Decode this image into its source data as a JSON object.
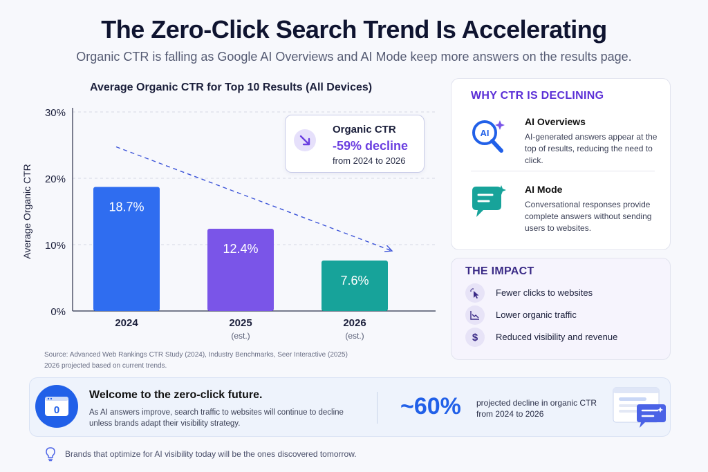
{
  "header": {
    "title": "The Zero-Click Search Trend Is Accelerating",
    "subtitle": "Organic CTR is falling as Google AI Overviews and AI Mode keep more answers on the results page."
  },
  "chart_data": {
    "type": "bar",
    "title": "Average Organic CTR for Top 10 Results (All Devices)",
    "ylabel": "Average Organic CTR",
    "xlabel": "",
    "ylim": [
      0,
      30
    ],
    "yticks": [
      "0%",
      "10%",
      "20%",
      "30%"
    ],
    "ytick_values": [
      0,
      10,
      20,
      30
    ],
    "grid": true,
    "categories": [
      "2024",
      "2025",
      "2026"
    ],
    "category_sublabels": [
      "",
      "(est.)",
      "(est.)"
    ],
    "values": [
      18.7,
      12.4,
      7.6
    ],
    "value_labels": [
      "18.7%",
      "12.4%",
      "7.6%"
    ],
    "bar_colors": [
      "#2f6df0",
      "#7a55e8",
      "#17a39a"
    ],
    "trend_line": true
  },
  "callout": {
    "label": "Organic CTR",
    "value": "-59% decline",
    "range": "from 2024 to 2026",
    "icon": "trend-down-icon"
  },
  "source": {
    "line1": "Source: Advanced Web Rankings CTR Study (2024), Industry Benchmarks, Seer Interactive (2025)",
    "line2": "2026 projected based on current trends."
  },
  "why": {
    "heading": "WHY CTR IS DECLINING",
    "items": [
      {
        "title": "AI Overviews",
        "desc": "AI-generated answers appear at the top of results, reducing the need to click.",
        "icon": "ai-search-icon",
        "icon_text": "AI"
      },
      {
        "title": "AI Mode",
        "desc": "Conversational responses provide complete answers without sending users to websites.",
        "icon": "chat-bubble-icon"
      }
    ]
  },
  "impact": {
    "heading": "THE IMPACT",
    "items": [
      {
        "label": "Fewer clicks to websites",
        "icon": "cursor-click-icon"
      },
      {
        "label": "Lower organic traffic",
        "icon": "line-chart-icon"
      },
      {
        "label": "Reduced visibility and revenue",
        "icon": "dollar-icon",
        "icon_text": "$"
      }
    ]
  },
  "banner": {
    "icon_text": "0",
    "title": "Welcome to the zero-click future.",
    "desc": "As AI answers improve, search traffic to websites will continue to decline unless brands adapt their visibility strategy.",
    "stat": "~60%",
    "stat_desc": "projected decline in organic CTR from 2024 to 2026"
  },
  "footer": {
    "text": "Brands that optimize for AI visibility today will be the ones discovered tomorrow.",
    "icon": "lightbulb-icon"
  },
  "colors": {
    "accent_purple": "#6a3ee0",
    "accent_blue": "#2160e8",
    "text_dark": "#1b1f3b"
  }
}
